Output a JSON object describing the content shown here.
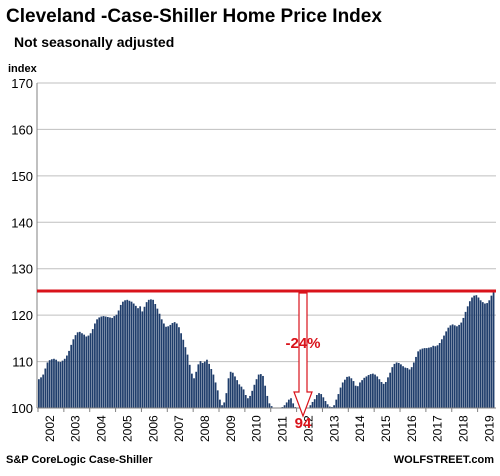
{
  "chart_data": {
    "type": "bar",
    "title": "Cleveland -Case-Shiller Home Price Index",
    "subtitle": "Not seasonally adjusted",
    "ylabel": "index",
    "xlabel": "",
    "ylim": [
      100,
      170
    ],
    "y_ticks": [
      100,
      110,
      120,
      130,
      140,
      150,
      160,
      170
    ],
    "x_ticks": [
      "2002",
      "2003",
      "2004",
      "2005",
      "2006",
      "2007",
      "2008",
      "2009",
      "2010",
      "2011",
      "2012",
      "2013",
      "2014",
      "2015",
      "2016",
      "2017",
      "2018",
      "2019"
    ],
    "grid": true,
    "start_month": "2002-01",
    "bar_color": "#1f3d6b",
    "monthly_values": [
      106.2,
      106.6,
      107.2,
      108.5,
      109.8,
      110.3,
      110.5,
      110.6,
      110.4,
      110.0,
      109.9,
      110.2,
      110.6,
      111.3,
      112.3,
      113.6,
      114.8,
      115.7,
      116.3,
      116.4,
      116.1,
      115.8,
      115.4,
      115.6,
      116.1,
      117.0,
      118.2,
      119.1,
      119.5,
      119.7,
      119.8,
      119.7,
      119.6,
      119.5,
      119.4,
      119.8,
      120.1,
      121.0,
      122.2,
      122.9,
      123.2,
      123.3,
      123.1,
      122.9,
      122.5,
      122.0,
      121.5,
      121.9,
      120.8,
      121.8,
      122.8,
      123.3,
      123.4,
      123.3,
      122.4,
      121.4,
      120.3,
      119.1,
      118.2,
      117.5,
      117.6,
      117.9,
      118.3,
      118.5,
      118.2,
      117.4,
      116.1,
      114.7,
      113.1,
      111.5,
      109.3,
      107.4,
      106.4,
      107.8,
      109.4,
      110.1,
      109.7,
      110.0,
      110.4,
      109.5,
      108.4,
      107.2,
      105.5,
      103.8,
      101.8,
      100.6,
      101.2,
      103.2,
      106.4,
      107.8,
      107.6,
      106.8,
      106.0,
      105.1,
      104.6,
      104.0,
      102.8,
      102.1,
      102.6,
      103.7,
      105.0,
      106.2,
      107.2,
      107.3,
      106.9,
      104.8,
      102.6,
      101.0,
      100.4,
      100.1,
      100.0,
      100.0,
      100.0,
      100.2,
      100.6,
      101.2,
      101.8,
      102.1,
      101.0,
      100.2,
      100.0,
      100.0,
      100.0,
      100.0,
      100.0,
      100.0,
      100.6,
      101.3,
      101.9,
      102.8,
      103.2,
      103.0,
      102.3,
      101.5,
      100.8,
      100.3,
      100.2,
      100.6,
      101.8,
      103.0,
      104.4,
      105.5,
      106.1,
      106.7,
      106.8,
      106.4,
      105.8,
      104.8,
      104.7,
      105.5,
      106.0,
      106.5,
      106.8,
      107.1,
      107.3,
      107.4,
      107.2,
      106.8,
      106.2,
      105.6,
      105.2,
      105.6,
      106.6,
      107.6,
      108.8,
      109.5,
      109.8,
      109.7,
      109.4,
      109.0,
      108.7,
      108.6,
      108.3,
      108.8,
      109.8,
      111.0,
      112.2,
      112.6,
      112.8,
      112.9,
      112.9,
      113.0,
      113.1,
      113.4,
      113.3,
      113.5,
      114.0,
      114.8,
      115.6,
      116.5,
      117.3,
      117.8,
      118.0,
      117.8,
      117.6,
      117.9,
      118.4,
      119.4,
      120.7,
      121.9,
      123.0,
      123.8,
      124.2,
      124.3,
      123.8,
      123.2,
      122.8,
      122.5,
      122.6,
      123.2,
      124.2,
      125.0
    ],
    "peak_line_value": 125.2,
    "annotation_percent": "-24%",
    "annotation_trough": "94",
    "source": "S&P CoreLogic Case-Shiller",
    "watermark": "WOLFSTREET.com"
  }
}
